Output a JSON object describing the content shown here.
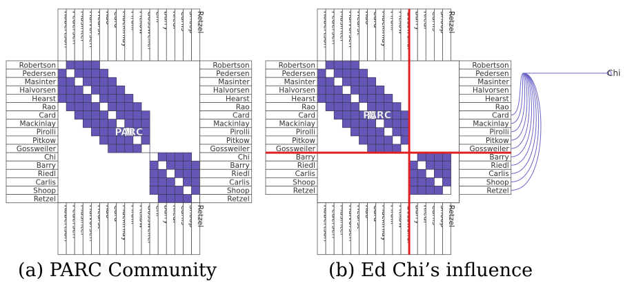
{
  "names": [
    "Robertson",
    "Pedersen",
    "Masinter",
    "Halvorsen",
    "Hearst",
    "Rao",
    "Card",
    "Mackinlay",
    "Pirolli",
    "Pitkow",
    "Gossweiler",
    "Chi",
    "Barry",
    "Riedl",
    "Carlis",
    "Shoop",
    "Retzel"
  ],
  "colors": {
    "cell_fill": "#6557b8",
    "diagonal": "#ffffff",
    "grid_line": "#3a3a55",
    "border": "#555555",
    "label_text": "#333333",
    "divider": "#e02020",
    "curve": "#6a63c8"
  },
  "panel_a": {
    "caption": "(a) PARC Community",
    "center_label": "PARC",
    "blocks": [
      {
        "from": 0,
        "to": 10
      },
      {
        "from": 11,
        "to": 16
      }
    ],
    "band": 4
  },
  "panel_b": {
    "caption": "(b) Ed Chi’s influence",
    "center_label": "PARC",
    "removed_node": "Chi",
    "node_label": "Chi",
    "group_a": {
      "from": 0,
      "to": 10,
      "band": 4
    },
    "group_b": {
      "from": 11,
      "to": 15
    }
  }
}
